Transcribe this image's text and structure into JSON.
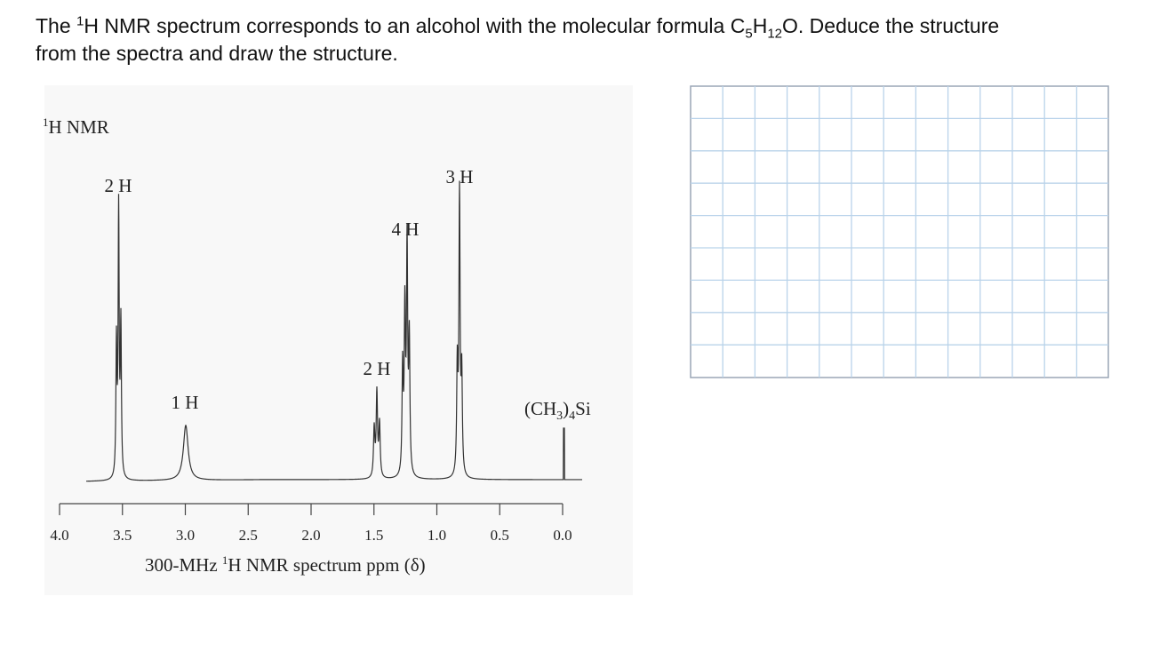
{
  "question": {
    "parts": [
      "The ",
      "1",
      "H NMR spectrum corresponds to an alcohol with the molecular formula C",
      "5",
      "H",
      "12",
      "O. Deduce the structure",
      "from the spectra and draw the structure."
    ]
  },
  "spectrum": {
    "title": [
      "1",
      "H NMR"
    ],
    "peak_labels": [
      "2 H",
      "1 H",
      "2 H",
      "4 H",
      "3 H"
    ],
    "reference_label": [
      "(CH",
      "3",
      ")",
      "4",
      "Si"
    ],
    "x_tick_labels": [
      "4.0",
      "3.5",
      "3.0",
      "2.5",
      "2.0",
      "1.5",
      "1.0",
      "0.5",
      "0.0"
    ],
    "x_axis_label": [
      "300-MHz ",
      "1",
      "H NMR spectrum ppm (δ)"
    ]
  }
}
